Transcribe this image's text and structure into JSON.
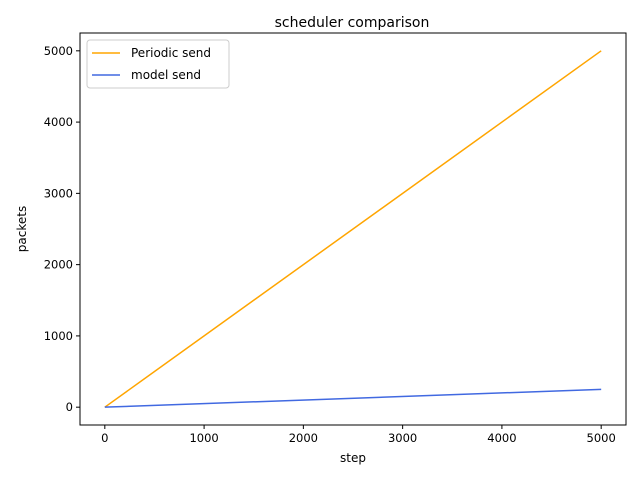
{
  "chart_data": {
    "type": "line",
    "title": "scheduler comparison",
    "xlabel": "step",
    "ylabel": "packets",
    "xlim": [
      -250,
      5250
    ],
    "ylim": [
      -250,
      5250
    ],
    "x_ticks": [
      0,
      1000,
      2000,
      3000,
      4000,
      5000
    ],
    "y_ticks": [
      0,
      1000,
      2000,
      3000,
      4000,
      5000
    ],
    "grid": false,
    "legend_position": "top-left",
    "series": [
      {
        "name": "Periodic send",
        "color": "#ffa500",
        "x": [
          0,
          5000
        ],
        "y": [
          0,
          5000
        ]
      },
      {
        "name": "model send",
        "color": "#4169e1",
        "x": [
          0,
          5000
        ],
        "y": [
          0,
          250
        ]
      }
    ]
  }
}
